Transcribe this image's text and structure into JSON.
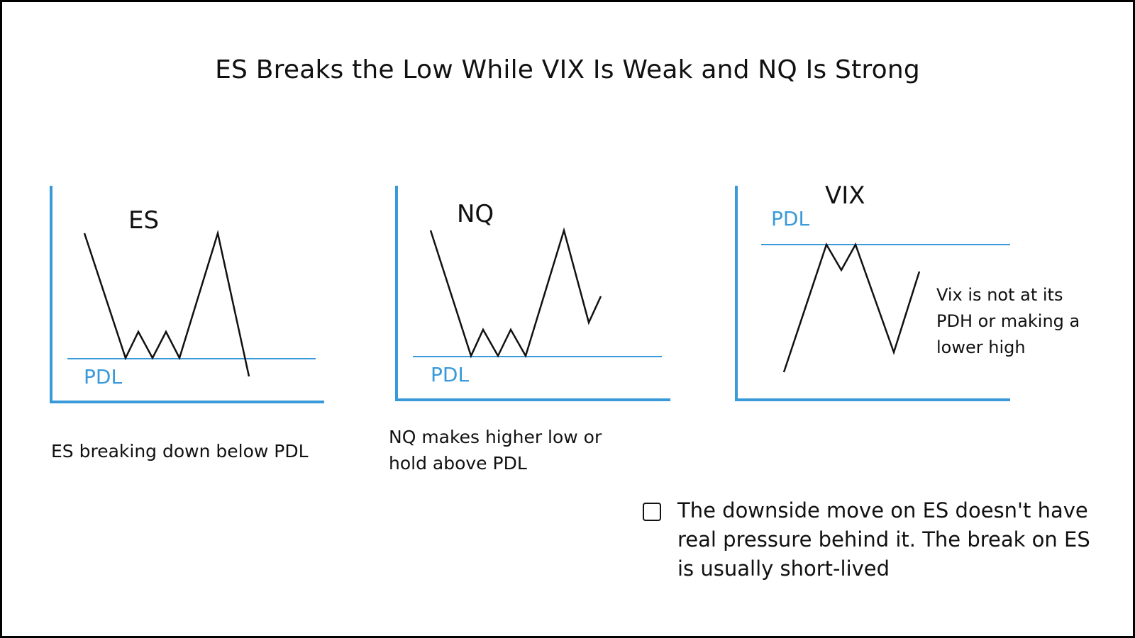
{
  "title": "ES Breaks the Low While VIX Is Weak and NQ Is Strong",
  "colors": {
    "axis": "#3a9ad9",
    "line": "#3a9ad9",
    "label": "#3a9ad9",
    "path": "#111111"
  },
  "panels": [
    {
      "id": "es",
      "label": "ES",
      "level_label": "PDL",
      "caption": "ES breaking down below PDL"
    },
    {
      "id": "nq",
      "label": "NQ",
      "level_label": "PDL",
      "caption": "NQ makes higher low or hold above PDL"
    },
    {
      "id": "vix",
      "label": "VIX",
      "level_label": "PDL",
      "annotation": "Vix is not at its PDH or making a lower high"
    }
  ],
  "note": {
    "checkbox_checked": false,
    "text": "The downside move on ES doesn't have real pressure behind it. The break on ES is usually short-lived"
  }
}
